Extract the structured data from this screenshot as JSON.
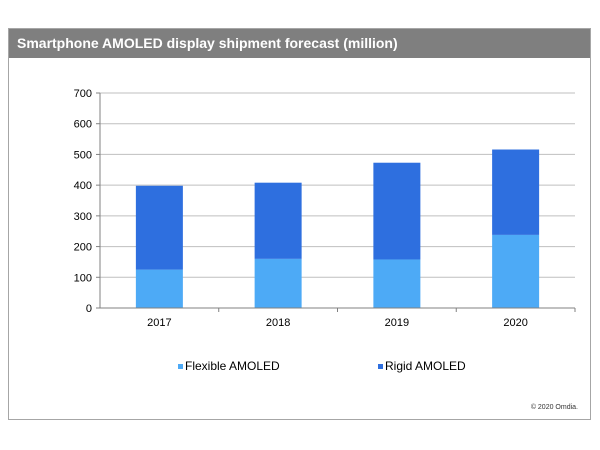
{
  "chart_data": {
    "type": "bar",
    "stacked": true,
    "title": "Smartphone AMOLED display shipment forecast (million)",
    "categories": [
      "2017",
      "2018",
      "2019",
      "2020"
    ],
    "series": [
      {
        "name": "Flexible AMOLED",
        "color": "#4daaf6",
        "values": [
          125,
          160,
          158,
          238
        ]
      },
      {
        "name": "Rigid AMOLED",
        "color": "#2e6fdf",
        "values": [
          273,
          248,
          315,
          278
        ]
      }
    ],
    "ylim": [
      0,
      700
    ],
    "yticks": [
      0,
      100,
      200,
      300,
      400,
      500,
      600,
      700
    ],
    "xlabel": "",
    "ylabel": "",
    "grid": true,
    "legend_position": "bottom"
  },
  "copyright": "© 2020 Omdia."
}
